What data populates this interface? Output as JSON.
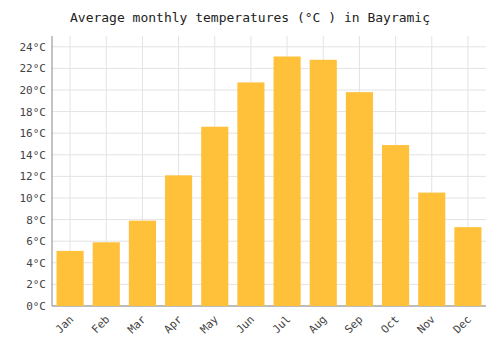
{
  "chart_data": {
    "type": "bar",
    "title": "Average monthly temperatures (°C ) in Bayramiç",
    "categories": [
      "Jan",
      "Feb",
      "Mar",
      "Apr",
      "May",
      "Jun",
      "Jul",
      "Aug",
      "Sep",
      "Oct",
      "Nov",
      "Dec"
    ],
    "values": [
      5.1,
      5.9,
      7.9,
      12.1,
      16.6,
      20.7,
      23.1,
      22.8,
      19.8,
      14.9,
      10.5,
      7.3
    ],
    "color": "#FFC03A",
    "ylim": [
      0,
      25
    ],
    "yticks": [
      {
        "value": 0,
        "label": "0°C"
      },
      {
        "value": 2,
        "label": "2°C"
      },
      {
        "value": 4,
        "label": "4°C"
      },
      {
        "value": 6,
        "label": "6°C"
      },
      {
        "value": 8,
        "label": "8°C"
      },
      {
        "value": 10,
        "label": "10°C"
      },
      {
        "value": 12,
        "label": "12°C"
      },
      {
        "value": 14,
        "label": "14°C"
      },
      {
        "value": 16,
        "label": "16°C"
      },
      {
        "value": 18,
        "label": "18°C"
      },
      {
        "value": 20,
        "label": "20°C"
      },
      {
        "value": 22,
        "label": "22°C"
      },
      {
        "value": 24,
        "label": "24°C"
      }
    ],
    "grid": true
  }
}
